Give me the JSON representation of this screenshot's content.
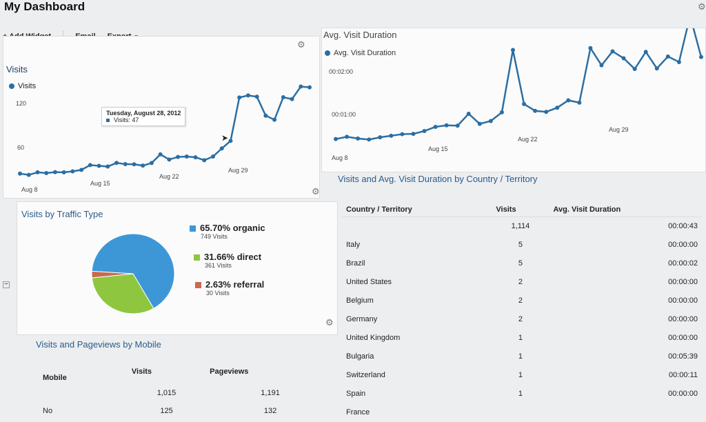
{
  "page_title": "My Dashboard",
  "toolbar": {
    "add_widget": "+ Add Widget",
    "email": "Email",
    "export": "Export"
  },
  "visits_panel": {
    "title": "Visits",
    "legend": "Visits",
    "ticks_y": [
      "120",
      "60"
    ],
    "ticks_x": [
      "Aug 8",
      "Aug 15",
      "Aug 22",
      "Aug 29"
    ],
    "tooltip": {
      "date": "Tuesday, August 28, 2012",
      "value": "Visits: 47"
    }
  },
  "duration_panel": {
    "title": "Avg. Visit Duration",
    "legend": "Avg. Visit Duration",
    "ticks_y": [
      "00:02:00",
      "00:01:00"
    ],
    "ticks_x": [
      "Aug 8",
      "Aug 15",
      "Aug 22",
      "Aug 29"
    ]
  },
  "traffic_panel": {
    "title": "Visits by Traffic Type",
    "items": [
      {
        "pct": "65.70% organic",
        "visits": "749 Visits",
        "color": "#3d97d7"
      },
      {
        "pct": "31.66% direct",
        "visits": "361 Visits",
        "color": "#8ec640"
      },
      {
        "pct": "2.63% referral",
        "visits": "30 Visits",
        "color": "#c9694e"
      }
    ]
  },
  "mobile_panel": {
    "title": "Visits and Pageviews by Mobile",
    "headers": [
      "Mobile",
      "Visits",
      "Pageviews"
    ],
    "rows": [
      [
        "",
        "1,015",
        "1,191"
      ],
      [
        "No",
        "125",
        "132"
      ]
    ]
  },
  "country_panel": {
    "title": "Visits and Avg. Visit Duration by Country / Territory",
    "headers": [
      "Country / Territory",
      "Visits",
      "Avg. Visit Duration"
    ],
    "rows": [
      [
        "",
        "1,114",
        "00:00:43"
      ],
      [
        "Italy",
        "5",
        "00:00:00"
      ],
      [
        "Brazil",
        "5",
        "00:00:02"
      ],
      [
        "United States",
        "2",
        "00:00:00"
      ],
      [
        "Belgium",
        "2",
        "00:00:00"
      ],
      [
        "Germany",
        "2",
        "00:00:00"
      ],
      [
        "United Kingdom",
        "1",
        "00:00:00"
      ],
      [
        "Bulgaria",
        "1",
        "00:05:39"
      ],
      [
        "Switzerland",
        "1",
        "00:00:11"
      ],
      [
        "Spain",
        "1",
        "00:00:00"
      ],
      [
        "France",
        "",
        ""
      ]
    ]
  },
  "chart_data": [
    {
      "type": "line",
      "title": "Visits",
      "series": [
        {
          "name": "Visits",
          "values": [
            4,
            1,
            5,
            3,
            4,
            3,
            4,
            6,
            14,
            12,
            10,
            16,
            13,
            12,
            9,
            13,
            28,
            18,
            22,
            22,
            20,
            14,
            20,
            34,
            47,
            125,
            128,
            125,
            90,
            82,
            122,
            118,
            140,
            138
          ]
        }
      ],
      "ylim": [
        0,
        150
      ]
    },
    {
      "type": "line",
      "title": "Avg. Visit Duration",
      "series": [
        {
          "name": "Avg. Visit Duration",
          "values": [
            10,
            12,
            8,
            5,
            7,
            8,
            9,
            8,
            11,
            16,
            17,
            15,
            32,
            15,
            18,
            30,
            125,
            40,
            28,
            25,
            30,
            40,
            35,
            118,
            90,
            110,
            98,
            80,
            105,
            78,
            95,
            85,
            155,
            90
          ]
        }
      ],
      "ylim": [
        0,
        160
      ]
    },
    {
      "type": "pie",
      "title": "Visits by Traffic Type",
      "categories": [
        "organic",
        "direct",
        "referral"
      ],
      "values": [
        65.7,
        31.66,
        2.63
      ]
    }
  ]
}
